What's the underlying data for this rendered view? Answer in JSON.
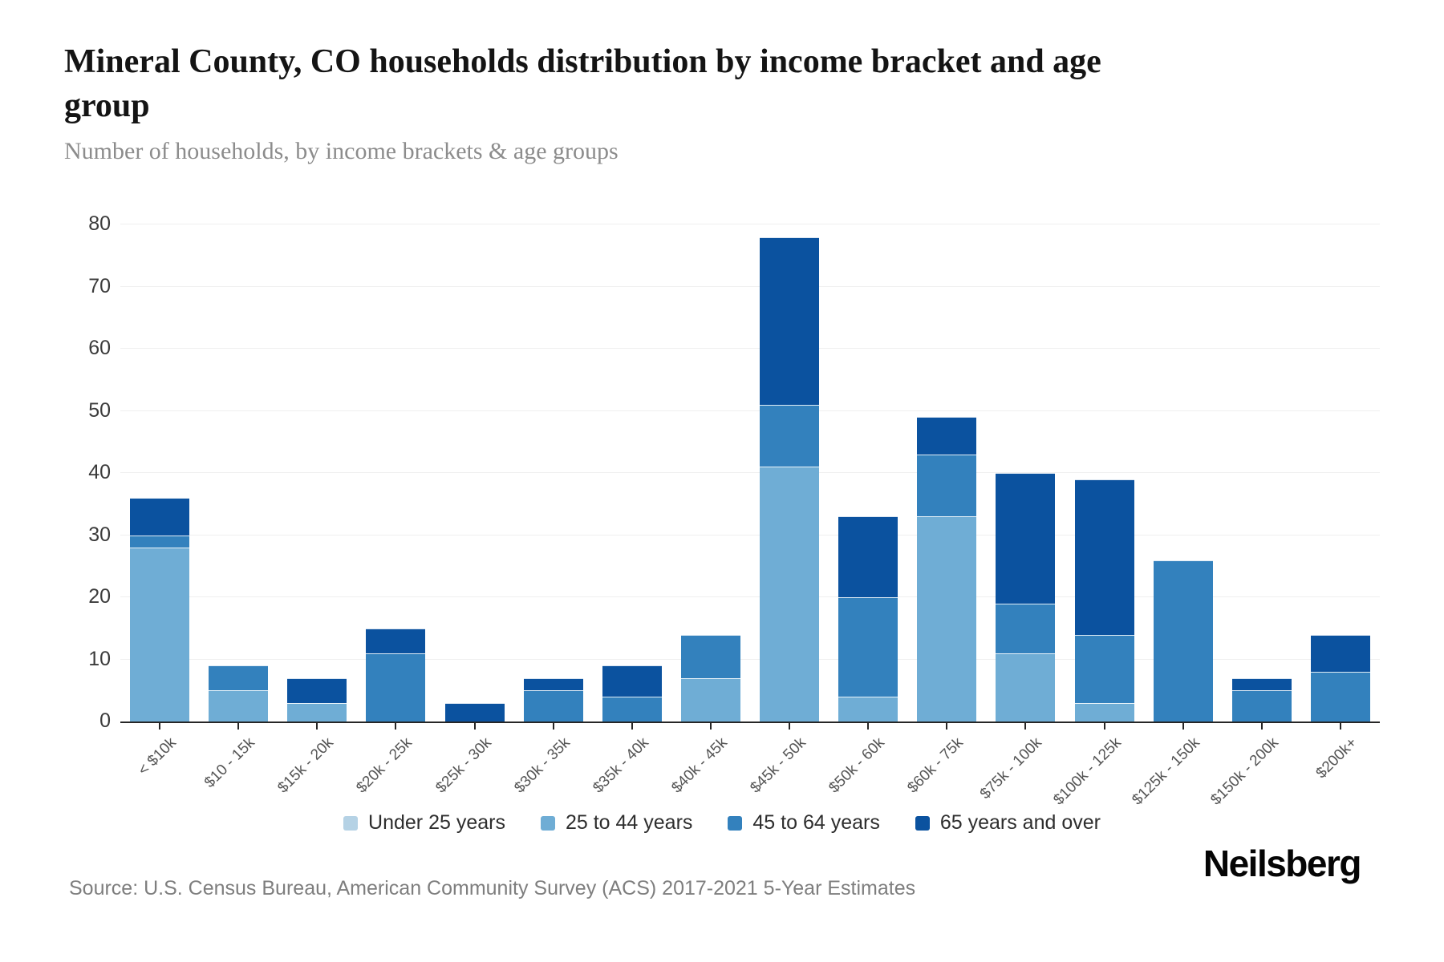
{
  "header": {
    "title": "Mineral County, CO households distribution by income bracket and age group",
    "subtitle": "Number of households, by income brackets & age groups"
  },
  "footer": {
    "source": "Source: U.S. Census Bureau, American Community Survey (ACS) 2017-2021 5-Year Estimates",
    "logo": "Neilsberg"
  },
  "chart_data": {
    "type": "bar",
    "stacked": true,
    "title": "Mineral County, CO households distribution by income bracket and age group",
    "subtitle": "Number of households, by income brackets & age groups",
    "xlabel": "",
    "ylabel": "Number of households",
    "categories": [
      "< $10k",
      "$10 - 15k",
      "$15k - 20k",
      "$20k - 25k",
      "$25k - 30k",
      "$30k - 35k",
      "$35k - 40k",
      "$40k - 45k",
      "$45k - 50k",
      "$50k - 60k",
      "$60k - 75k",
      "$75k - 100k",
      "$100k - 125k",
      "$125k - 150k",
      "$150k - 200k",
      "$200k+"
    ],
    "series": [
      {
        "name": "Under 25 years",
        "color": "#b5d2e5",
        "values": [
          0,
          0,
          0,
          0,
          0,
          0,
          0,
          0,
          0,
          0,
          0,
          0,
          0,
          0,
          0,
          0
        ]
      },
      {
        "name": "25 to 44 years",
        "color": "#6fadd5",
        "values": [
          28,
          5,
          3,
          0,
          0,
          0,
          0,
          7,
          41,
          4,
          33,
          11,
          3,
          0,
          0,
          0
        ]
      },
      {
        "name": "45 to 64 years",
        "color": "#3381bd",
        "values": [
          2,
          4,
          0,
          11,
          0,
          5,
          4,
          7,
          10,
          16,
          10,
          8,
          11,
          26,
          5,
          8
        ]
      },
      {
        "name": "65 years and over",
        "color": "#0b529f",
        "values": [
          6,
          0,
          4,
          4,
          3,
          2,
          5,
          0,
          27,
          13,
          6,
          21,
          25,
          0,
          2,
          6
        ]
      }
    ],
    "totals": [
      36,
      9,
      7,
      15,
      3,
      7,
      9,
      14,
      78,
      33,
      49,
      40,
      39,
      26,
      7,
      14
    ],
    "ylim": [
      0,
      80
    ],
    "ytick_interval": 10,
    "ytick_labels": [
      "0",
      "10",
      "20",
      "30",
      "40",
      "50",
      "60",
      "70",
      "80"
    ],
    "grid": true,
    "legend_position": "bottom",
    "grid_color": "#efefef",
    "axis_color": "#262626",
    "xlabel_color": "#555555",
    "ylabel_color": "#3b3b3b"
  }
}
